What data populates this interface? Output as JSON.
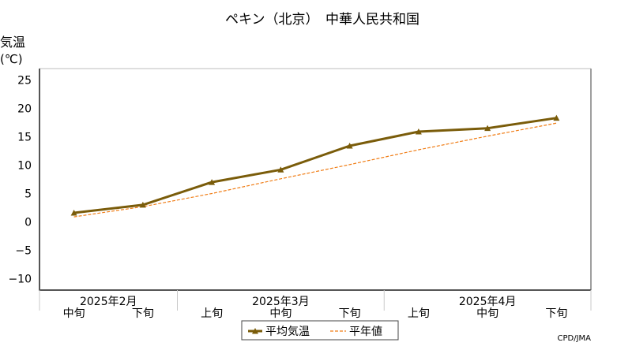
{
  "chart_data": {
    "type": "line",
    "title": "ペキン（北京）　中華人民共和国",
    "ylabel": "気温",
    "yunit": "(℃)",
    "ylim": [
      -12,
      27
    ],
    "yticks": [
      -10,
      -5,
      0,
      5,
      10,
      15,
      20,
      25
    ],
    "grid": true,
    "categories": [
      "中旬",
      "下旬",
      "上旬",
      "中旬",
      "下旬",
      "上旬",
      "中旬",
      "下旬"
    ],
    "month_groups": [
      {
        "label": "2025年2月",
        "start": 0,
        "count": 2
      },
      {
        "label": "2025年3月",
        "start": 2,
        "count": 3
      },
      {
        "label": "2025年4月",
        "start": 5,
        "count": 3
      }
    ],
    "series": [
      {
        "name": "平均気温",
        "style": "solid-marker",
        "color": "#7a5c0a",
        "values": [
          1.6,
          3.0,
          7.0,
          9.2,
          13.4,
          15.9,
          16.5,
          18.3
        ]
      },
      {
        "name": "平年値",
        "style": "dashed",
        "color": "#f07c14",
        "values": [
          0.9,
          2.7,
          5.0,
          7.6,
          10.1,
          12.7,
          15.1,
          17.4
        ]
      }
    ],
    "legend_position": "bottom-center",
    "credit": "CPD/JMA"
  }
}
